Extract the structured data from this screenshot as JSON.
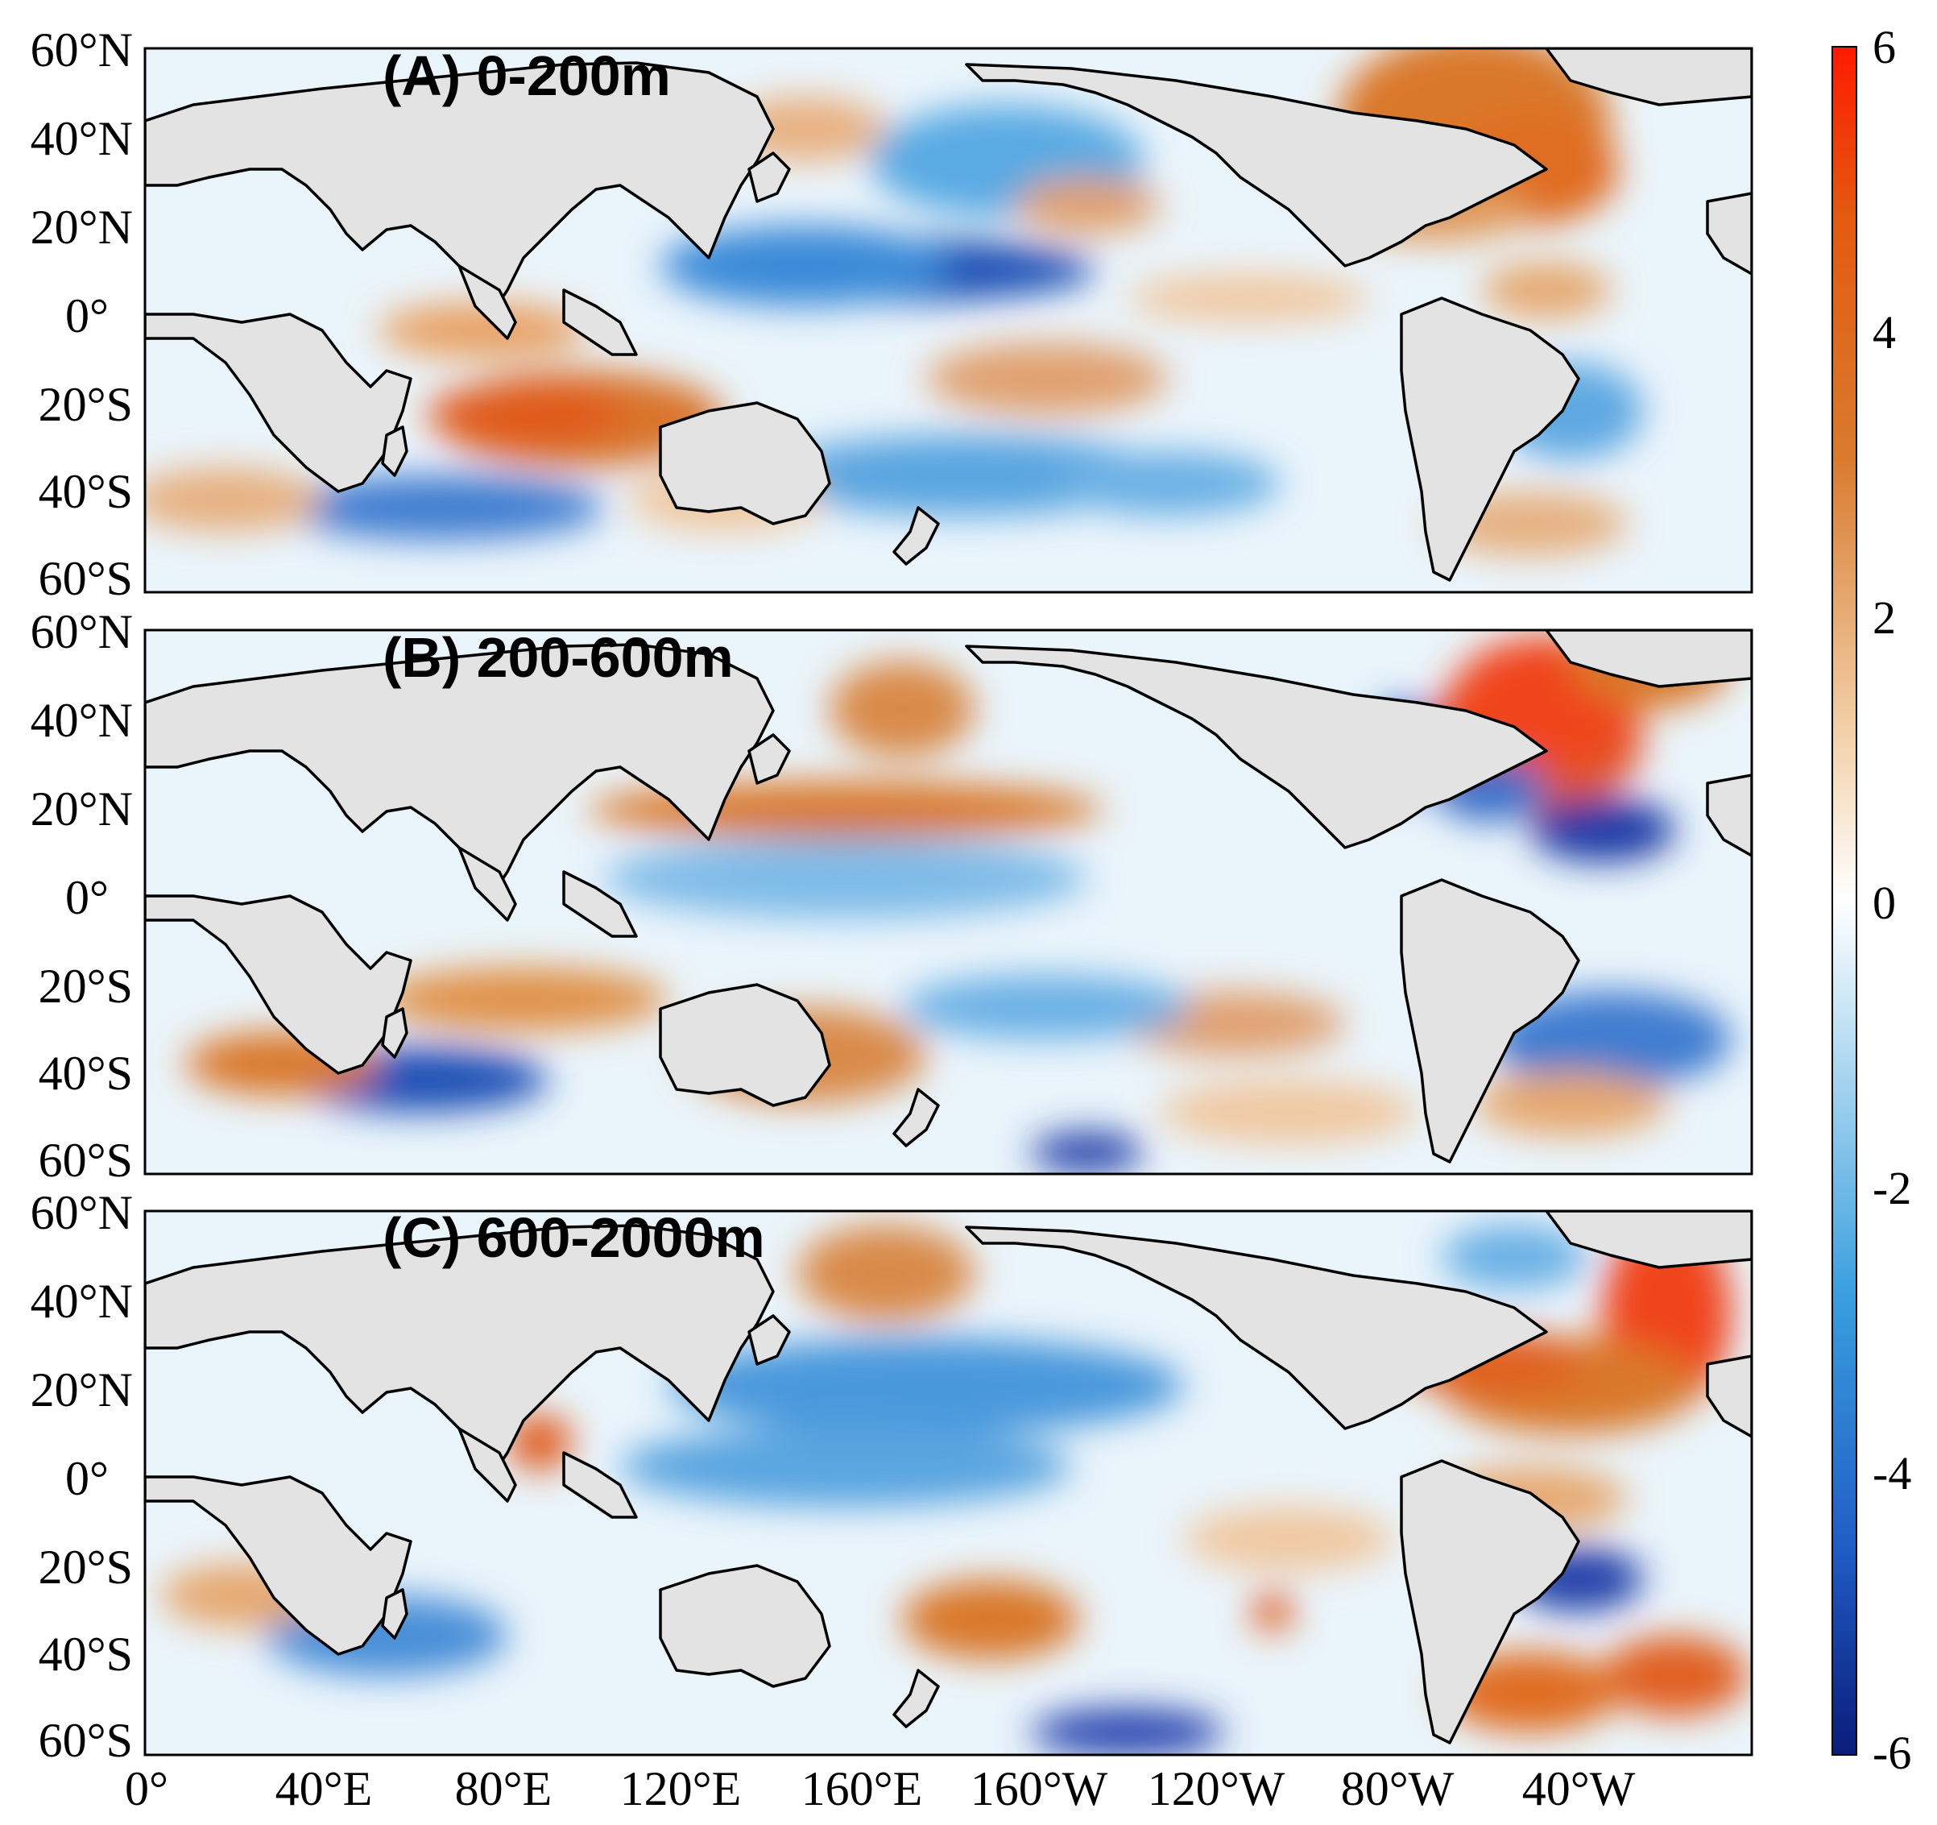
{
  "figure": {
    "panels": [
      {
        "id": "A",
        "title": "(A) 0-200m"
      },
      {
        "id": "B",
        "title": "(B) 200-600m"
      },
      {
        "id": "C",
        "title": "(C) 600-2000m"
      }
    ],
    "lat_ticks": [
      "60°N",
      "40°N",
      "20°N",
      "0°",
      "20°S",
      "40°S",
      "60°S"
    ],
    "lon_ticks": [
      "0°",
      "40°E",
      "80°E",
      "120°E",
      "160°E",
      "160°W",
      "120°W",
      "80°W",
      "40°W"
    ],
    "colorbar": {
      "ticks": [
        "6",
        "4",
        "2",
        "0",
        "-2",
        "-4",
        "-6"
      ],
      "range": [
        -6,
        6
      ],
      "colors": [
        "#0a1c7a",
        "#1f5cc4",
        "#3a9fdf",
        "#aad6f0",
        "#ffffff",
        "#f2d0a8",
        "#d97a2e",
        "#e35a10",
        "#ff1a00"
      ]
    },
    "colors": {
      "land": "#e3e3e3",
      "coast": "#000000",
      "ocean_base": "#e8f3fb"
    }
  }
}
